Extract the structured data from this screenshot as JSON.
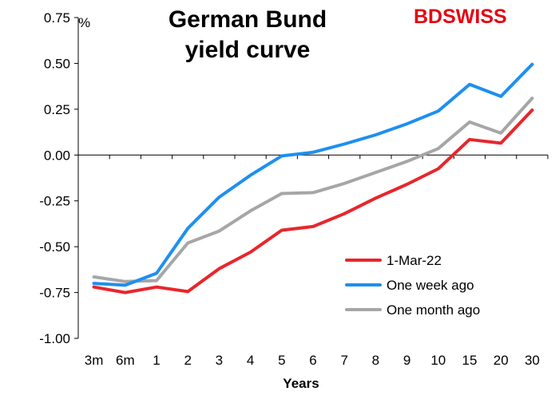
{
  "chart_data": {
    "type": "line",
    "title_lines": [
      "German Bund",
      "yield curve"
    ],
    "brand": "BDSWISS",
    "ylabel": "%",
    "xlabel": "Years",
    "categories": [
      "3m",
      "6m",
      "1",
      "2",
      "3",
      "4",
      "5",
      "6",
      "7",
      "8",
      "9",
      "10",
      "15",
      "20",
      "30"
    ],
    "ylim": [
      -1.0,
      0.75
    ],
    "yticks": [
      "0.75",
      "0.50",
      "0.25",
      "0.00",
      "-0.25",
      "-0.50",
      "-0.75",
      "-1.00"
    ],
    "ytick_values": [
      0.75,
      0.5,
      0.25,
      0.0,
      -0.25,
      -0.5,
      -0.75,
      -1.0
    ],
    "grid": false,
    "legend_position": "bottom-right",
    "series": [
      {
        "name": "1-Mar-22",
        "color": "#e8262b",
        "values": [
          -0.72,
          -0.75,
          -0.72,
          -0.745,
          -0.62,
          -0.53,
          -0.41,
          -0.39,
          -0.32,
          -0.235,
          -0.16,
          -0.075,
          0.085,
          0.065,
          0.245
        ]
      },
      {
        "name": "One week ago",
        "color": "#1e8ff0",
        "values": [
          -0.7,
          -0.71,
          -0.645,
          -0.4,
          -0.23,
          -0.11,
          -0.005,
          0.015,
          0.06,
          0.11,
          0.17,
          0.24,
          0.385,
          0.32,
          0.495
        ]
      },
      {
        "name": "One month ago",
        "color": "#a6a6a6",
        "values": [
          -0.665,
          -0.69,
          -0.685,
          -0.48,
          -0.415,
          -0.305,
          -0.21,
          -0.205,
          -0.155,
          -0.095,
          -0.035,
          0.035,
          0.18,
          0.12,
          0.31
        ]
      }
    ]
  }
}
